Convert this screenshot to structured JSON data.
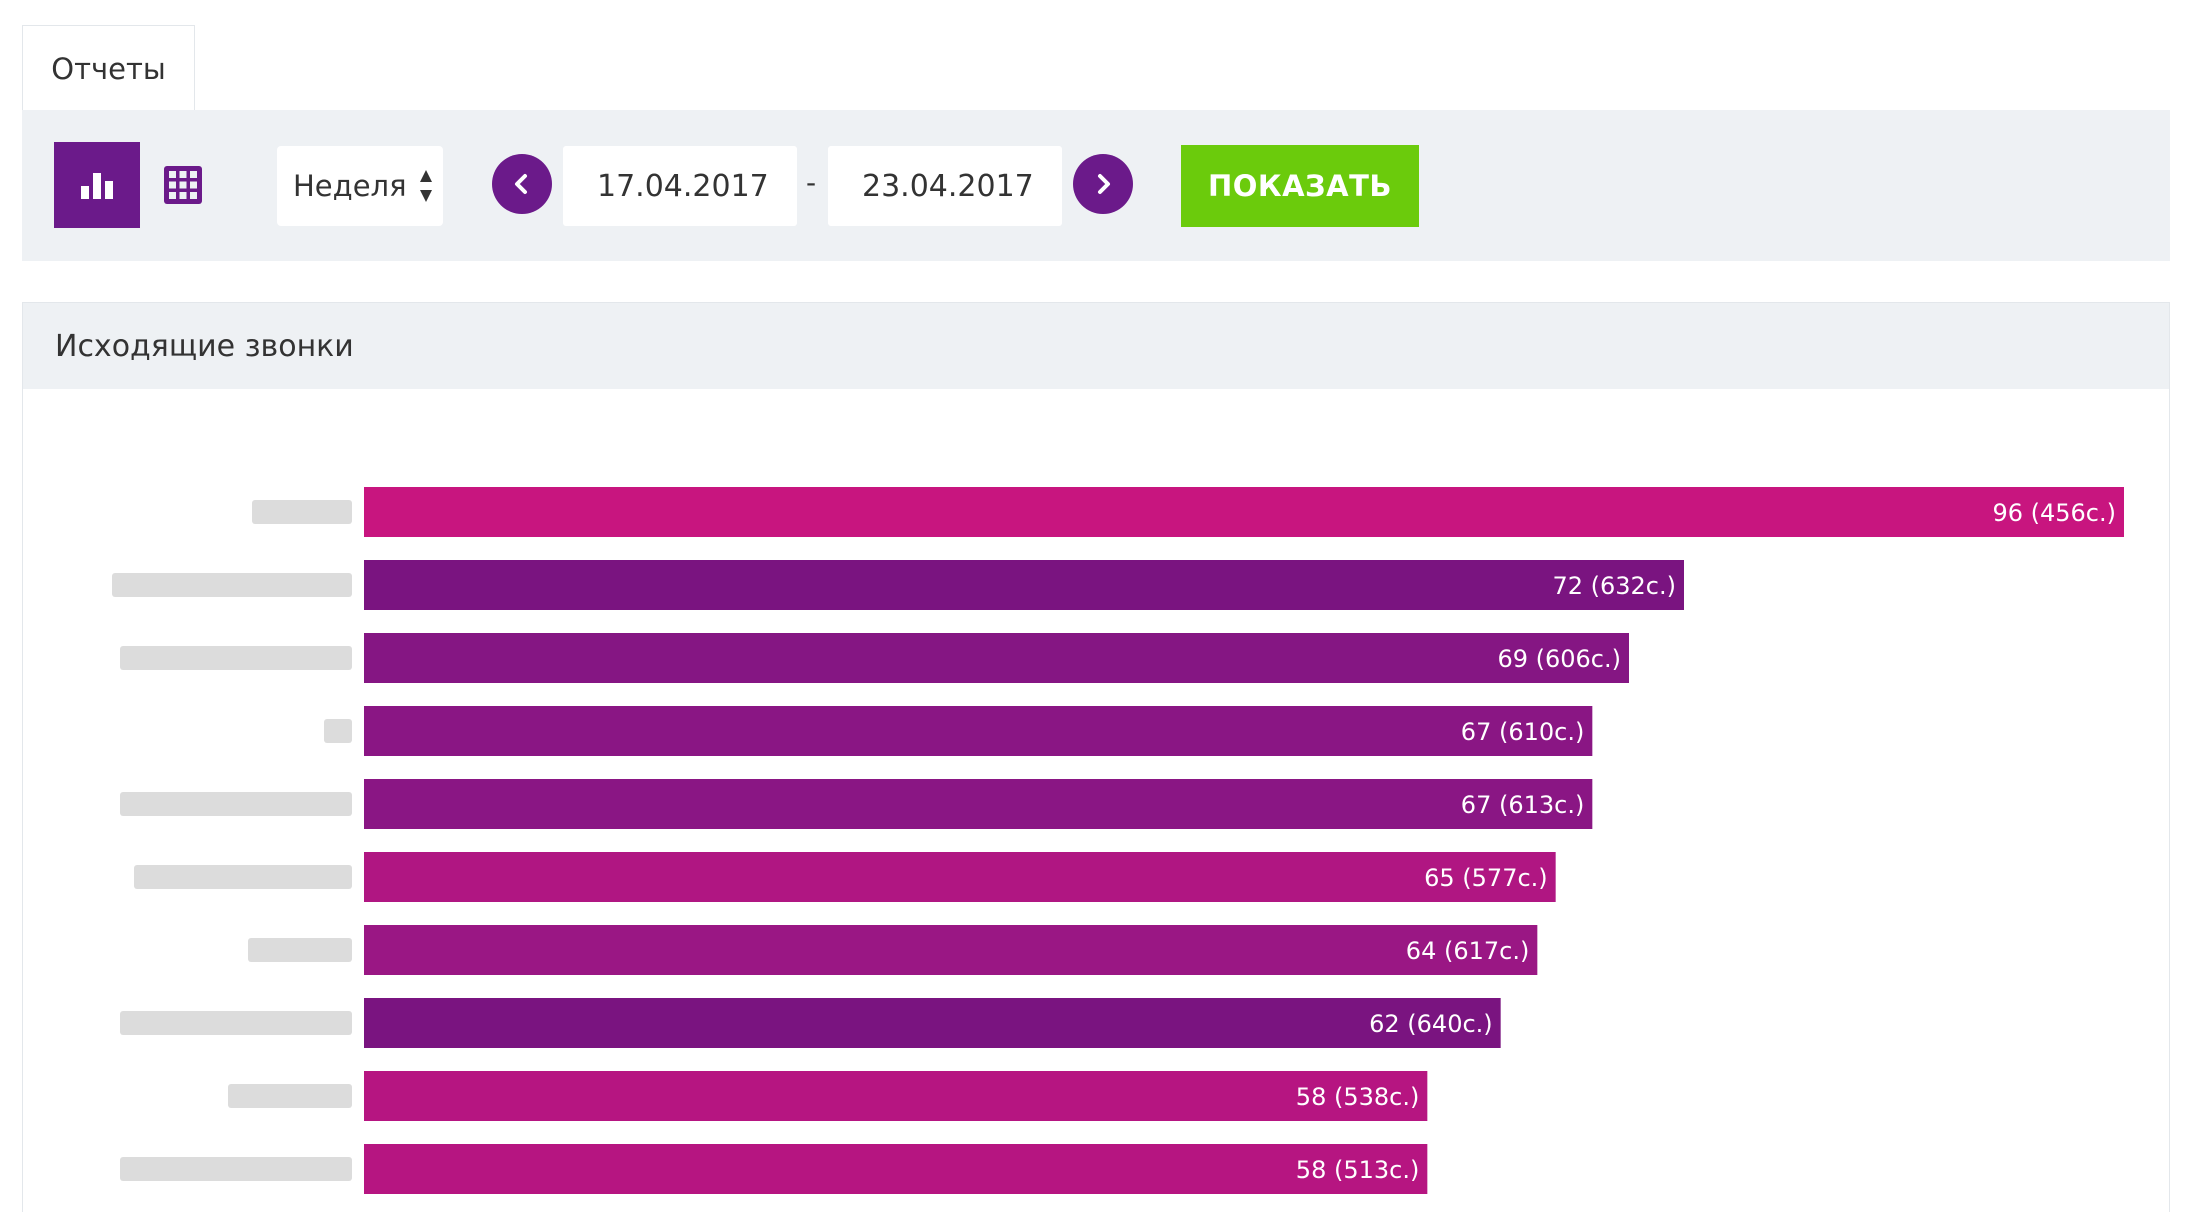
{
  "tabs": [
    {
      "label": "Отчеты"
    }
  ],
  "toolbar": {
    "view_chart_icon": "bar-chart-icon",
    "view_table_icon": "grid-icon",
    "period": {
      "selected": "Неделя"
    },
    "date_from": "17.04.2017",
    "date_separator": "-",
    "date_to": "23.04.2017",
    "show_label": "ПОКАЗАТЬ",
    "colors": {
      "accent": "#6b1a8a",
      "show_button": "#6bcb0c",
      "toolbar_bg": "#eef1f4"
    }
  },
  "report": {
    "title": "Исходящие звонки"
  },
  "chart_data": {
    "type": "bar",
    "orientation": "horizontal",
    "categories": [
      "",
      "",
      "",
      "",
      "",
      "",
      "",
      "",
      "",
      ""
    ],
    "values": [
      96,
      72,
      69,
      67,
      67,
      65,
      64,
      62,
      58,
      58
    ],
    "data_labels": [
      "96 (456с.)",
      "72 (632с.)",
      "69 (606с.)",
      "67 (610с.)",
      "67 (613с.)",
      "65 (577с.)",
      "64 (617с.)",
      "62 (640с.)",
      "58 (538с.)",
      "58 (513с.)"
    ],
    "colors": [
      "#c8157f",
      "#7a1480",
      "#851683",
      "#8a1684",
      "#8a1684",
      "#b01682",
      "#9a1784",
      "#7a1480",
      "#b61581",
      "#b61581"
    ],
    "xlim": [
      0,
      96
    ],
    "grid": false,
    "legend": "none"
  }
}
